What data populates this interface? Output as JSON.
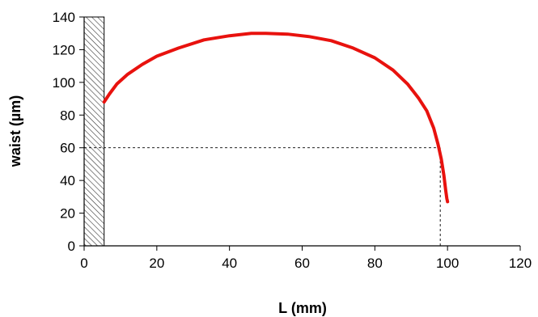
{
  "chart_data": {
    "type": "line",
    "xlabel": "L (mm)",
    "ylabel": "waist (µm)",
    "xlim": [
      0,
      120
    ],
    "ylim": [
      0,
      140
    ],
    "x_ticks": [
      0,
      20,
      40,
      60,
      80,
      100,
      120
    ],
    "y_ticks": [
      0,
      20,
      40,
      60,
      80,
      100,
      120,
      140
    ],
    "grid": false,
    "series": [
      {
        "color": "#e8120e",
        "x": [
          5.5,
          7,
          9,
          12,
          16,
          20,
          26,
          33,
          40,
          46,
          50,
          56,
          62,
          68,
          74,
          80,
          85,
          89,
          92,
          94.3,
          96.2,
          97.4,
          98.3,
          99,
          99.5,
          99.8,
          100
        ],
        "y": [
          88,
          93,
          99,
          105,
          111,
          116,
          121,
          126,
          128.5,
          130,
          130,
          129.5,
          128,
          125.5,
          121,
          115,
          107.5,
          99,
          90.5,
          82.5,
          72,
          62,
          53,
          43,
          34,
          29,
          27
        ]
      }
    ],
    "reference_lines": [
      {
        "orientation": "horizontal",
        "y": 60,
        "x_from": 0,
        "x_to": 98,
        "style": "dashed"
      },
      {
        "orientation": "vertical",
        "x": 98,
        "y_from": 0,
        "y_to": 60,
        "style": "dashed"
      }
    ],
    "shaded_region": {
      "x_from": 0,
      "x_to": 5.5,
      "y_from": 0,
      "y_to": 140,
      "pattern": "diagonal-hatch"
    }
  }
}
